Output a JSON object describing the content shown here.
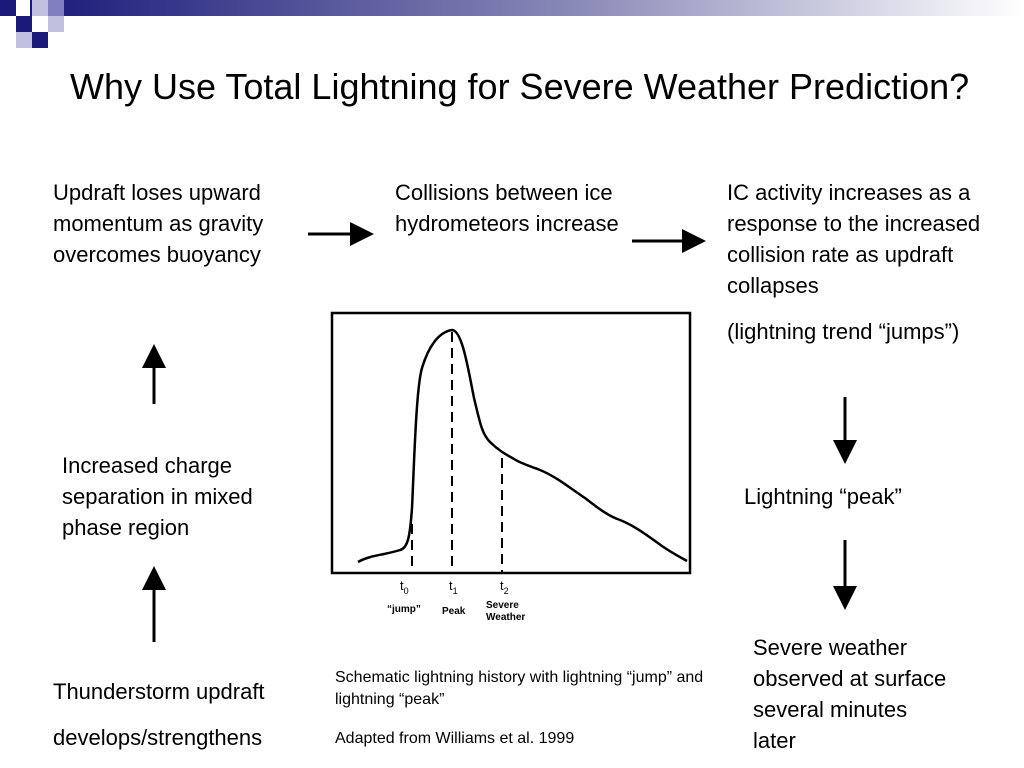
{
  "title": "Why Use Total Lightning for Severe Weather Prediction?",
  "steps": {
    "updraft_loses": "Updraft loses upward momentum as gravity overcomes buoyancy",
    "collisions": "Collisions between ice hydrometeors increase",
    "ic_activity": "IC activity increases as a response to the increased collision rate as updraft collapses",
    "jumps": "(lightning trend “jumps”)",
    "charge_separation": "Increased charge separation in mixed phase region",
    "lightning_peak": "Lightning “peak”",
    "severe_observed": "Severe weather observed at surface several minutes later",
    "thunderstorm_1": "Thunderstorm updraft",
    "thunderstorm_2": "develops/strengthens"
  },
  "caption": {
    "schematic": "Schematic lightning history with lightning “jump” and lightning “peak”",
    "source": "Adapted from Williams et al. 1999"
  },
  "graph": {
    "markers": [
      {
        "symbol": "t",
        "sub": "0",
        "label": "“jump”"
      },
      {
        "symbol": "t",
        "sub": "1",
        "label": "Peak"
      },
      {
        "symbol": "t",
        "sub": "2",
        "label": "Severe Weather"
      }
    ]
  },
  "colors": {
    "bar_dark": "#1a1a7a",
    "bar_light": "#ffffff",
    "square_mid": "#8080c0",
    "square_light": "#c0c0e0"
  }
}
